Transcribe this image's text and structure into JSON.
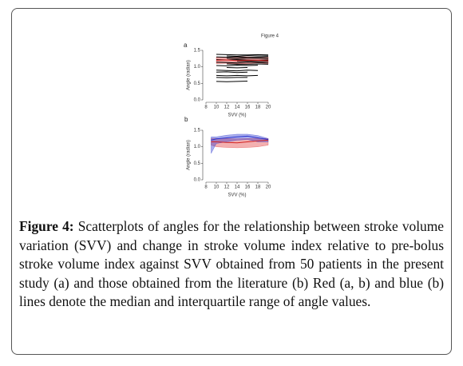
{
  "figure_label": "Figure 4",
  "chart_data": [
    {
      "type": "line",
      "panel": "a",
      "xlabel": "SVV (%)",
      "ylabel": "Angle (radian)",
      "x": [
        8,
        10,
        12,
        14,
        16,
        18,
        20
      ],
      "xlim": [
        8,
        20
      ],
      "xticks": [
        8,
        10,
        12,
        14,
        16,
        18,
        20
      ],
      "ylim": [
        0,
        1.5
      ],
      "yticks": [
        {
          "value": 0,
          "label": "0.0"
        },
        {
          "value": 0.5,
          "label": "0.5"
        },
        {
          "value": 1,
          "label": "1.0"
        },
        {
          "value": 1.5,
          "label": "1.5"
        }
      ],
      "series": [
        {
          "color": "#d22222",
          "kind": "band",
          "low": [
            null,
            1.1,
            1.11,
            1.09,
            1.1,
            1.12,
            1.1
          ],
          "high": [
            null,
            1.3,
            1.29,
            1.31,
            1.3,
            1.29,
            1.3
          ]
        },
        {
          "color": "#000000",
          "values": [
            null,
            1.38,
            1.37,
            1.36,
            1.36,
            1.37,
            1.36
          ]
        },
        {
          "color": "#000000",
          "values": [
            null,
            null,
            1.33,
            1.32,
            1.34,
            1.33,
            1.33
          ]
        },
        {
          "color": "#000000",
          "values": [
            null,
            1.3,
            1.29,
            1.3,
            1.28,
            1.29,
            1.3
          ]
        },
        {
          "color": "#000000",
          "values": [
            null,
            null,
            1.26,
            1.25,
            1.27,
            1.26,
            1.25
          ]
        },
        {
          "color": "#000000",
          "values": [
            null,
            1.22,
            1.21,
            1.22,
            1.21,
            1.2,
            1.21
          ]
        },
        {
          "color": "#000000",
          "values": [
            null,
            null,
            null,
            1.17,
            1.18,
            1.16,
            1.17
          ]
        },
        {
          "color": "#000000",
          "values": [
            null,
            1.14,
            1.13,
            1.12,
            1.14,
            1.13,
            1.12
          ]
        },
        {
          "color": "#000000",
          "values": [
            null,
            null,
            1.09,
            1.08,
            1.08,
            1.09,
            1.08
          ]
        },
        {
          "color": "#000000",
          "values": [
            null,
            1.04,
            1.03,
            1.05,
            1.04,
            1.05,
            null
          ]
        },
        {
          "color": "#000000",
          "values": [
            null,
            null,
            0.98,
            0.97,
            0.98,
            null,
            null
          ]
        },
        {
          "color": "#000000",
          "values": [
            null,
            0.9,
            0.89,
            0.88,
            0.9,
            0.89,
            null
          ]
        },
        {
          "color": "#000000",
          "values": [
            null,
            0.84,
            0.85,
            0.83,
            0.84,
            null,
            null
          ]
        },
        {
          "color": "#000000",
          "values": [
            null,
            0.74,
            0.73,
            0.74,
            0.73,
            0.74,
            null
          ]
        },
        {
          "color": "#000000",
          "values": [
            null,
            0.68,
            0.67,
            0.68,
            0.68,
            null,
            null
          ]
        },
        {
          "color": "#000000",
          "values": [
            null,
            0.56,
            0.55,
            0.56,
            0.57,
            null,
            null
          ]
        },
        {
          "color": "#d22222",
          "values": [
            null,
            1.2,
            1.21,
            1.19,
            1.2,
            1.2,
            1.19
          ]
        }
      ]
    },
    {
      "type": "line",
      "panel": "b",
      "xlabel": "SVV (%)",
      "ylabel": "Angle (radian)",
      "x": [
        9,
        10,
        12,
        14,
        16,
        18,
        20
      ],
      "xlim": [
        8,
        20
      ],
      "xticks": [
        8,
        10,
        12,
        14,
        16,
        18,
        20
      ],
      "ylim": [
        0,
        1.5
      ],
      "yticks": [
        {
          "value": 0,
          "label": "0.0"
        },
        {
          "value": 0.5,
          "label": "0.5"
        },
        {
          "value": 1,
          "label": "1.0"
        },
        {
          "value": 1.5,
          "label": "1.5"
        }
      ],
      "series": [
        {
          "color": "#e23a3a",
          "kind": "band",
          "low": [
            1.05,
            1.0,
            0.98,
            0.97,
            0.98,
            1.0,
            1.05
          ],
          "high": [
            1.25,
            1.25,
            1.25,
            1.24,
            1.25,
            1.26,
            1.25
          ]
        },
        {
          "color": "#2a35d0",
          "kind": "band",
          "low": [
            0.8,
            1.1,
            1.15,
            1.2,
            1.22,
            1.15,
            1.15
          ],
          "high": [
            1.3,
            1.3,
            1.35,
            1.38,
            1.38,
            1.34,
            1.25
          ]
        },
        {
          "color": "#d22222",
          "values": [
            1.15,
            1.15,
            1.13,
            1.12,
            1.15,
            1.18,
            1.2
          ]
        },
        {
          "color": "#2a35d0",
          "values": [
            1.2,
            1.24,
            1.27,
            1.3,
            1.32,
            1.27,
            1.22
          ]
        }
      ]
    }
  ],
  "caption": {
    "label": "Figure 4:",
    "text": "Scatterplots of angles for the relationship between stroke volume variation (SVV) and change in stroke volume index relative to pre-bolus stroke volume index against SVV obtained from 50 patients in the present study (a) and those obtained from the literature (b) Red (a, b) and blue (b) lines denote the median and interquartile range of angle values."
  }
}
